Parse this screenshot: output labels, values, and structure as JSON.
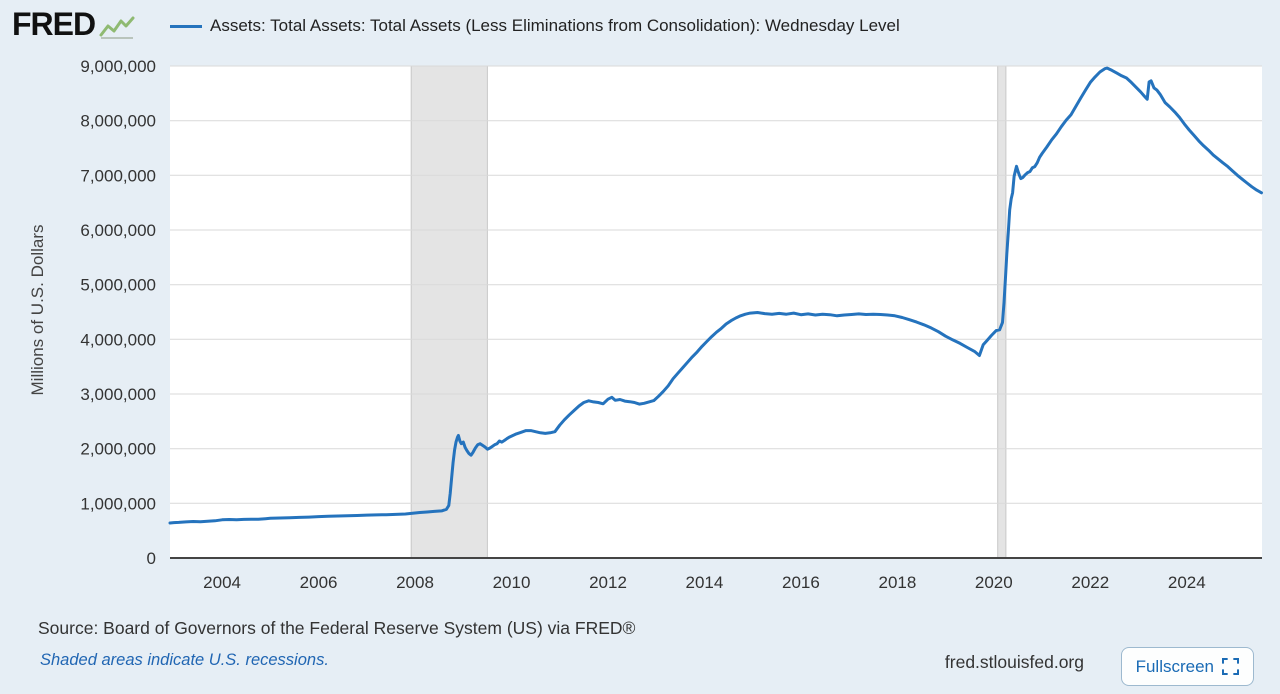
{
  "header": {
    "logo_text": "FRED"
  },
  "chart_data": {
    "type": "line",
    "title": "Assets: Total Assets: Total Assets (Less Eliminations from Consolidation): Wednesday Level",
    "ylabel": "Millions of U.S. Dollars",
    "ylim": [
      0,
      9000000
    ],
    "x_range": [
      2002.92,
      2025.56
    ],
    "grid": true,
    "legend_position": "top",
    "y_ticks": [
      {
        "v": 0,
        "label": "0"
      },
      {
        "v": 1000000,
        "label": "1,000,000"
      },
      {
        "v": 2000000,
        "label": "2,000,000"
      },
      {
        "v": 3000000,
        "label": "3,000,000"
      },
      {
        "v": 4000000,
        "label": "4,000,000"
      },
      {
        "v": 5000000,
        "label": "5,000,000"
      },
      {
        "v": 6000000,
        "label": "6,000,000"
      },
      {
        "v": 7000000,
        "label": "7,000,000"
      },
      {
        "v": 8000000,
        "label": "8,000,000"
      },
      {
        "v": 9000000,
        "label": "9,000,000"
      }
    ],
    "x_ticks": [
      {
        "v": 2004,
        "label": "2004"
      },
      {
        "v": 2006,
        "label": "2006"
      },
      {
        "v": 2008,
        "label": "2008"
      },
      {
        "v": 2010,
        "label": "2010"
      },
      {
        "v": 2012,
        "label": "2012"
      },
      {
        "v": 2014,
        "label": "2014"
      },
      {
        "v": 2016,
        "label": "2016"
      },
      {
        "v": 2018,
        "label": "2018"
      },
      {
        "v": 2020,
        "label": "2020"
      },
      {
        "v": 2022,
        "label": "2022"
      },
      {
        "v": 2024,
        "label": "2024"
      }
    ],
    "recessions": [
      [
        2007.92,
        2009.5
      ],
      [
        2020.08,
        2020.25
      ]
    ],
    "colors": {
      "line": "#2573bd",
      "plot_bg": "#ffffff",
      "grid": "#d9d9d9",
      "axis": "#444444",
      "recession": "#e4e4e4",
      "recession_edge": "#c8c8c8"
    },
    "series": [
      {
        "name": "Assets: Total Assets: Total Assets (Less Eliminations from Consolidation): Wednesday Level",
        "units": "Millions of U.S. Dollars",
        "points": [
          [
            2002.92,
            640000
          ],
          [
            2003.0,
            648000
          ],
          [
            2003.1,
            652000
          ],
          [
            2003.25,
            660000
          ],
          [
            2003.4,
            668000
          ],
          [
            2003.55,
            663000
          ],
          [
            2003.7,
            672000
          ],
          [
            2003.85,
            680000
          ],
          [
            2004.0,
            698000
          ],
          [
            2004.15,
            704000
          ],
          [
            2004.3,
            698000
          ],
          [
            2004.45,
            706000
          ],
          [
            2004.6,
            710000
          ],
          [
            2004.75,
            708000
          ],
          [
            2004.9,
            718000
          ],
          [
            2005.0,
            726000
          ],
          [
            2005.2,
            732000
          ],
          [
            2005.4,
            738000
          ],
          [
            2005.6,
            742000
          ],
          [
            2005.8,
            748000
          ],
          [
            2006.0,
            758000
          ],
          [
            2006.2,
            762000
          ],
          [
            2006.4,
            768000
          ],
          [
            2006.6,
            772000
          ],
          [
            2006.8,
            778000
          ],
          [
            2007.0,
            784000
          ],
          [
            2007.2,
            788000
          ],
          [
            2007.4,
            792000
          ],
          [
            2007.6,
            798000
          ],
          [
            2007.8,
            804000
          ],
          [
            2007.95,
            818000
          ],
          [
            2008.1,
            832000
          ],
          [
            2008.25,
            842000
          ],
          [
            2008.4,
            852000
          ],
          [
            2008.55,
            862000
          ],
          [
            2008.65,
            890000
          ],
          [
            2008.7,
            960000
          ],
          [
            2008.73,
            1180000
          ],
          [
            2008.76,
            1480000
          ],
          [
            2008.79,
            1750000
          ],
          [
            2008.82,
            1980000
          ],
          [
            2008.85,
            2120000
          ],
          [
            2008.88,
            2210000
          ],
          [
            2008.9,
            2240000
          ],
          [
            2008.93,
            2140000
          ],
          [
            2008.96,
            2090000
          ],
          [
            2009.0,
            2120000
          ],
          [
            2009.04,
            2020000
          ],
          [
            2009.08,
            1960000
          ],
          [
            2009.12,
            1910000
          ],
          [
            2009.16,
            1880000
          ],
          [
            2009.2,
            1930000
          ],
          [
            2009.25,
            2010000
          ],
          [
            2009.3,
            2070000
          ],
          [
            2009.35,
            2090000
          ],
          [
            2009.4,
            2060000
          ],
          [
            2009.45,
            2030000
          ],
          [
            2009.5,
            1990000
          ],
          [
            2009.55,
            2010000
          ],
          [
            2009.6,
            2040000
          ],
          [
            2009.65,
            2070000
          ],
          [
            2009.7,
            2090000
          ],
          [
            2009.75,
            2140000
          ],
          [
            2009.8,
            2120000
          ],
          [
            2009.85,
            2150000
          ],
          [
            2009.9,
            2180000
          ],
          [
            2009.95,
            2210000
          ],
          [
            2010.0,
            2230000
          ],
          [
            2010.1,
            2270000
          ],
          [
            2010.2,
            2300000
          ],
          [
            2010.3,
            2330000
          ],
          [
            2010.4,
            2330000
          ],
          [
            2010.5,
            2310000
          ],
          [
            2010.6,
            2290000
          ],
          [
            2010.7,
            2280000
          ],
          [
            2010.8,
            2290000
          ],
          [
            2010.9,
            2310000
          ],
          [
            2011.0,
            2430000
          ],
          [
            2011.1,
            2530000
          ],
          [
            2011.2,
            2620000
          ],
          [
            2011.3,
            2700000
          ],
          [
            2011.4,
            2780000
          ],
          [
            2011.5,
            2845000
          ],
          [
            2011.6,
            2875000
          ],
          [
            2011.7,
            2855000
          ],
          [
            2011.8,
            2845000
          ],
          [
            2011.9,
            2820000
          ],
          [
            2012.0,
            2905000
          ],
          [
            2012.08,
            2940000
          ],
          [
            2012.15,
            2885000
          ],
          [
            2012.25,
            2900000
          ],
          [
            2012.35,
            2870000
          ],
          [
            2012.45,
            2860000
          ],
          [
            2012.55,
            2845000
          ],
          [
            2012.65,
            2815000
          ],
          [
            2012.75,
            2830000
          ],
          [
            2012.85,
            2855000
          ],
          [
            2012.95,
            2880000
          ],
          [
            2013.05,
            2960000
          ],
          [
            2013.15,
            3050000
          ],
          [
            2013.25,
            3150000
          ],
          [
            2013.35,
            3280000
          ],
          [
            2013.45,
            3380000
          ],
          [
            2013.55,
            3480000
          ],
          [
            2013.65,
            3580000
          ],
          [
            2013.75,
            3680000
          ],
          [
            2013.85,
            3770000
          ],
          [
            2013.95,
            3870000
          ],
          [
            2014.05,
            3960000
          ],
          [
            2014.15,
            4050000
          ],
          [
            2014.25,
            4130000
          ],
          [
            2014.35,
            4200000
          ],
          [
            2014.45,
            4280000
          ],
          [
            2014.55,
            4340000
          ],
          [
            2014.65,
            4390000
          ],
          [
            2014.75,
            4430000
          ],
          [
            2014.85,
            4460000
          ],
          [
            2014.95,
            4480000
          ],
          [
            2015.1,
            4490000
          ],
          [
            2015.25,
            4470000
          ],
          [
            2015.4,
            4460000
          ],
          [
            2015.55,
            4475000
          ],
          [
            2015.7,
            4460000
          ],
          [
            2015.85,
            4480000
          ],
          [
            2016.0,
            4450000
          ],
          [
            2016.15,
            4465000
          ],
          [
            2016.3,
            4445000
          ],
          [
            2016.45,
            4460000
          ],
          [
            2016.6,
            4450000
          ],
          [
            2016.75,
            4430000
          ],
          [
            2016.9,
            4445000
          ],
          [
            2017.05,
            4455000
          ],
          [
            2017.2,
            4465000
          ],
          [
            2017.35,
            4455000
          ],
          [
            2017.5,
            4460000
          ],
          [
            2017.65,
            4455000
          ],
          [
            2017.8,
            4445000
          ],
          [
            2017.95,
            4430000
          ],
          [
            2018.1,
            4400000
          ],
          [
            2018.25,
            4360000
          ],
          [
            2018.4,
            4315000
          ],
          [
            2018.55,
            4265000
          ],
          [
            2018.7,
            4210000
          ],
          [
            2018.85,
            4140000
          ],
          [
            2019.0,
            4058000
          ],
          [
            2019.15,
            3990000
          ],
          [
            2019.3,
            3925000
          ],
          [
            2019.45,
            3850000
          ],
          [
            2019.6,
            3780000
          ],
          [
            2019.7,
            3705000
          ],
          [
            2019.78,
            3900000
          ],
          [
            2019.85,
            3970000
          ],
          [
            2019.95,
            4070000
          ],
          [
            2020.05,
            4160000
          ],
          [
            2020.12,
            4175000
          ],
          [
            2020.18,
            4310000
          ],
          [
            2020.21,
            4670000
          ],
          [
            2020.24,
            5100000
          ],
          [
            2020.27,
            5560000
          ],
          [
            2020.3,
            5960000
          ],
          [
            2020.33,
            6370000
          ],
          [
            2020.36,
            6570000
          ],
          [
            2020.39,
            6680000
          ],
          [
            2020.42,
            6980000
          ],
          [
            2020.45,
            7090000
          ],
          [
            2020.47,
            7165000
          ],
          [
            2020.5,
            7080000
          ],
          [
            2020.53,
            7000000
          ],
          [
            2020.56,
            6940000
          ],
          [
            2020.6,
            6960000
          ],
          [
            2020.65,
            7010000
          ],
          [
            2020.7,
            7050000
          ],
          [
            2020.75,
            7070000
          ],
          [
            2020.8,
            7140000
          ],
          [
            2020.85,
            7160000
          ],
          [
            2020.9,
            7230000
          ],
          [
            2020.95,
            7330000
          ],
          [
            2021.0,
            7400000
          ],
          [
            2021.1,
            7520000
          ],
          [
            2021.2,
            7650000
          ],
          [
            2021.3,
            7760000
          ],
          [
            2021.4,
            7890000
          ],
          [
            2021.5,
            8010000
          ],
          [
            2021.6,
            8110000
          ],
          [
            2021.7,
            8260000
          ],
          [
            2021.8,
            8410000
          ],
          [
            2021.9,
            8560000
          ],
          [
            2022.0,
            8700000
          ],
          [
            2022.1,
            8800000
          ],
          [
            2022.2,
            8890000
          ],
          [
            2022.3,
            8950000
          ],
          [
            2022.35,
            8962000
          ],
          [
            2022.45,
            8920000
          ],
          [
            2022.55,
            8870000
          ],
          [
            2022.65,
            8820000
          ],
          [
            2022.75,
            8780000
          ],
          [
            2022.85,
            8700000
          ],
          [
            2022.95,
            8610000
          ],
          [
            2023.05,
            8520000
          ],
          [
            2023.12,
            8450000
          ],
          [
            2023.18,
            8390000
          ],
          [
            2023.22,
            8710000
          ],
          [
            2023.26,
            8730000
          ],
          [
            2023.32,
            8600000
          ],
          [
            2023.38,
            8560000
          ],
          [
            2023.45,
            8480000
          ],
          [
            2023.55,
            8330000
          ],
          [
            2023.65,
            8250000
          ],
          [
            2023.75,
            8160000
          ],
          [
            2023.85,
            8060000
          ],
          [
            2023.95,
            7940000
          ],
          [
            2024.05,
            7830000
          ],
          [
            2024.15,
            7730000
          ],
          [
            2024.25,
            7630000
          ],
          [
            2024.35,
            7540000
          ],
          [
            2024.45,
            7460000
          ],
          [
            2024.55,
            7370000
          ],
          [
            2024.65,
            7300000
          ],
          [
            2024.75,
            7230000
          ],
          [
            2024.85,
            7160000
          ],
          [
            2024.95,
            7080000
          ],
          [
            2025.05,
            7000000
          ],
          [
            2025.15,
            6930000
          ],
          [
            2025.25,
            6860000
          ],
          [
            2025.35,
            6790000
          ],
          [
            2025.45,
            6730000
          ],
          [
            2025.55,
            6680000
          ]
        ]
      }
    ]
  },
  "footer": {
    "source_text": "Source: Board of Governors of the Federal Reserve System (US) via FRED®",
    "recession_note": "Shaded areas indicate U.S. recessions.",
    "site_url": "fred.stlouisfed.org",
    "fullscreen_label": "Fullscreen"
  }
}
